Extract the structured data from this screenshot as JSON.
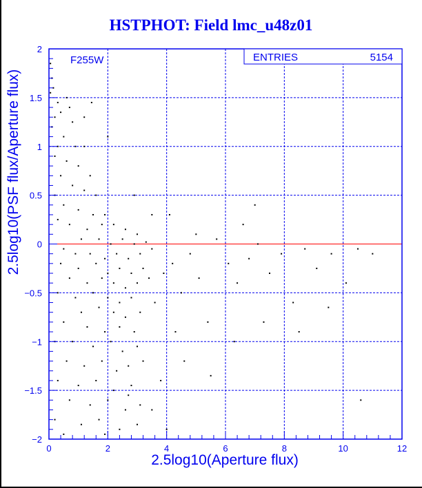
{
  "chart_data": {
    "type": "scatter",
    "title": "HSTPHOT: Field lmc_u48z01",
    "xlabel": "2.5log10(Aperture flux)",
    "ylabel": "2.5log10(PSF flux/Aperture flux)",
    "xlim": [
      0,
      12
    ],
    "ylim": [
      -2,
      2
    ],
    "xticks": [
      "0",
      "2",
      "4",
      "6",
      "8",
      "10",
      "12"
    ],
    "yticks": [
      "-2",
      "-1.5",
      "-1",
      "-0.5",
      "0",
      "0.5",
      "1",
      "1.5",
      "2"
    ],
    "grid": true,
    "annotation": "F255W",
    "stats": {
      "label": "ENTRIES",
      "value": "5154"
    },
    "reference_line_y": 0,
    "colors": {
      "axis": "#0000ee",
      "points": "#000000",
      "reference": "#ff0000"
    },
    "points": [
      [
        0.05,
        1.85
      ],
      [
        0.1,
        1.7
      ],
      [
        0.15,
        1.6
      ],
      [
        0.05,
        1.55
      ],
      [
        0.3,
        1.45
      ],
      [
        0.2,
        1.3
      ],
      [
        0.4,
        1.35
      ],
      [
        0.6,
        1.5
      ],
      [
        0.1,
        1.2
      ],
      [
        0.5,
        1.1
      ],
      [
        0.8,
        1.25
      ],
      [
        0.3,
        1.0
      ],
      [
        0.9,
        1.0
      ],
      [
        1.2,
        1.0
      ],
      [
        0.2,
        0.9
      ],
      [
        0.6,
        0.85
      ],
      [
        1.0,
        0.8
      ],
      [
        1.4,
        0.7
      ],
      [
        0.4,
        0.7
      ],
      [
        0.8,
        0.6
      ],
      [
        1.2,
        0.55
      ],
      [
        1.6,
        0.5
      ],
      [
        0.2,
        0.5
      ],
      [
        0.5,
        0.4
      ],
      [
        1.0,
        0.35
      ],
      [
        1.5,
        0.3
      ],
      [
        1.9,
        0.3
      ],
      [
        0.3,
        0.25
      ],
      [
        0.7,
        0.2
      ],
      [
        1.3,
        0.15
      ],
      [
        1.8,
        0.2
      ],
      [
        2.2,
        0.2
      ],
      [
        2.6,
        0.15
      ],
      [
        3.0,
        0.1
      ],
      [
        1.1,
        0.05
      ],
      [
        1.7,
        0.05
      ],
      [
        2.1,
        0.0
      ],
      [
        2.5,
        0.05
      ],
      [
        2.9,
        0.0
      ],
      [
        3.3,
        0.02
      ],
      [
        0.5,
        -0.05
      ],
      [
        0.9,
        -0.1
      ],
      [
        1.4,
        -0.1
      ],
      [
        1.9,
        -0.15
      ],
      [
        2.3,
        -0.1
      ],
      [
        2.7,
        -0.15
      ],
      [
        3.1,
        -0.1
      ],
      [
        3.5,
        -0.05
      ],
      [
        0.4,
        -0.2
      ],
      [
        1.0,
        -0.25
      ],
      [
        1.6,
        -0.2
      ],
      [
        2.0,
        -0.3
      ],
      [
        2.4,
        -0.25
      ],
      [
        2.8,
        -0.3
      ],
      [
        3.2,
        -0.25
      ],
      [
        0.7,
        -0.35
      ],
      [
        1.3,
        -0.4
      ],
      [
        1.8,
        -0.35
      ],
      [
        2.2,
        -0.4
      ],
      [
        2.6,
        -0.45
      ],
      [
        3.0,
        -0.4
      ],
      [
        3.4,
        -0.35
      ],
      [
        0.3,
        -0.5
      ],
      [
        0.9,
        -0.55
      ],
      [
        1.5,
        -0.5
      ],
      [
        2.0,
        -0.55
      ],
      [
        2.4,
        -0.6
      ],
      [
        2.8,
        -0.55
      ],
      [
        1.1,
        -0.7
      ],
      [
        1.7,
        -0.65
      ],
      [
        2.2,
        -0.7
      ],
      [
        2.6,
        -0.75
      ],
      [
        3.1,
        -0.7
      ],
      [
        0.5,
        -0.8
      ],
      [
        1.3,
        -0.85
      ],
      [
        1.9,
        -0.9
      ],
      [
        2.4,
        -0.85
      ],
      [
        2.9,
        -0.9
      ],
      [
        0.2,
        -1.0
      ],
      [
        0.8,
        -1.0
      ],
      [
        1.5,
        -1.05
      ],
      [
        2.1,
        -1.0
      ],
      [
        2.5,
        -1.1
      ],
      [
        3.0,
        -1.05
      ],
      [
        0.6,
        -1.2
      ],
      [
        1.2,
        -1.25
      ],
      [
        1.8,
        -1.2
      ],
      [
        2.3,
        -1.3
      ],
      [
        2.7,
        -1.25
      ],
      [
        0.3,
        -1.4
      ],
      [
        1.0,
        -1.45
      ],
      [
        1.6,
        -1.4
      ],
      [
        2.2,
        -1.5
      ],
      [
        2.8,
        -1.45
      ],
      [
        0.7,
        -1.6
      ],
      [
        1.4,
        -1.65
      ],
      [
        2.0,
        -1.6
      ],
      [
        2.6,
        -1.7
      ],
      [
        3.1,
        -1.65
      ],
      [
        0.2,
        -1.8
      ],
      [
        1.1,
        -1.85
      ],
      [
        1.7,
        -1.8
      ],
      [
        2.4,
        -1.9
      ],
      [
        3.0,
        -1.85
      ],
      [
        0.5,
        -1.95
      ],
      [
        1.9,
        -1.95
      ],
      [
        2.7,
        -1.55
      ],
      [
        3.2,
        -1.2
      ],
      [
        3.6,
        -0.6
      ],
      [
        3.9,
        -0.3
      ],
      [
        4.2,
        -0.2
      ],
      [
        4.5,
        -0.5
      ],
      [
        4.8,
        -0.1
      ],
      [
        5.1,
        -0.35
      ],
      [
        5.4,
        -0.8
      ],
      [
        5.7,
        0.05
      ],
      [
        6.1,
        -0.2
      ],
      [
        6.4,
        -0.4
      ],
      [
        6.8,
        -0.15
      ],
      [
        7.1,
        0.0
      ],
      [
        7.5,
        -0.3
      ],
      [
        7.9,
        -0.1
      ],
      [
        8.3,
        -0.6
      ],
      [
        8.7,
        -0.05
      ],
      [
        9.1,
        -0.25
      ],
      [
        9.6,
        -0.1
      ],
      [
        10.1,
        -0.4
      ],
      [
        10.5,
        -0.05
      ],
      [
        11.0,
        -0.1
      ],
      [
        10.6,
        -1.6
      ],
      [
        4.1,
        0.3
      ],
      [
        4.6,
        -1.2
      ],
      [
        5.5,
        -1.35
      ],
      [
        6.3,
        -1.0
      ],
      [
        7.3,
        -0.8
      ],
      [
        8.5,
        -0.9
      ],
      [
        9.5,
        -0.65
      ],
      [
        5.0,
        0.1
      ],
      [
        6.6,
        0.2
      ],
      [
        7.0,
        0.4
      ],
      [
        4.3,
        -0.9
      ],
      [
        3.8,
        -1.4
      ],
      [
        3.5,
        -1.7
      ],
      [
        4.0,
        -1.9
      ],
      [
        1.45,
        1.45
      ],
      [
        2.0,
        1.1
      ],
      [
        1.2,
        1.3
      ],
      [
        0.7,
        1.4
      ],
      [
        2.9,
        0.5
      ],
      [
        3.5,
        0.3
      ]
    ]
  }
}
